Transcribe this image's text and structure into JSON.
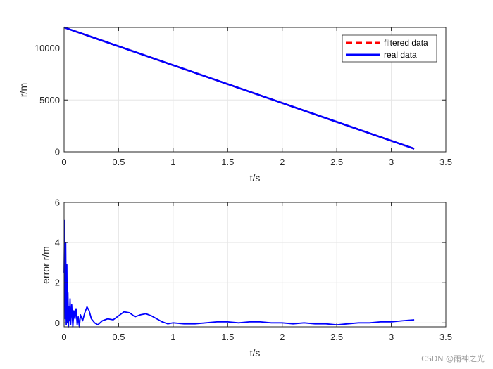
{
  "chart_data": [
    {
      "type": "line",
      "xlabel": "t/s",
      "ylabel": "r/m",
      "xlim": [
        0,
        3.5
      ],
      "ylim": [
        0,
        12000
      ],
      "xticks": [
        "0",
        "0.5",
        "1",
        "1.5",
        "2",
        "2.5",
        "3",
        "3.5"
      ],
      "yticks": [
        "0",
        "5000",
        "10000"
      ],
      "grid": true,
      "legend_placement": "top-right",
      "series": [
        {
          "name": "filtered data",
          "color": "#ff0000",
          "style": "dashed",
          "x": [
            0,
            3.21
          ],
          "y": [
            12000,
            300
          ]
        },
        {
          "name": "real data",
          "color": "#0000ff",
          "style": "solid",
          "x": [
            0,
            3.21
          ],
          "y": [
            12000,
            300
          ]
        }
      ]
    },
    {
      "type": "line",
      "xlabel": "t/s",
      "ylabel": "error r/m",
      "xlim": [
        0,
        3.5
      ],
      "ylim": [
        -0.2,
        6
      ],
      "xticks": [
        "0",
        "0.5",
        "1",
        "1.5",
        "2",
        "2.5",
        "3",
        "3.5"
      ],
      "yticks": [
        "0",
        "2",
        "4",
        "6"
      ],
      "grid": true,
      "series": [
        {
          "color": "#0000ff",
          "style": "solid",
          "x": [
            0,
            0.005,
            0.01,
            0.015,
            0.02,
            0.025,
            0.03,
            0.035,
            0.04,
            0.045,
            0.05,
            0.055,
            0.06,
            0.07,
            0.08,
            0.09,
            0.1,
            0.11,
            0.12,
            0.13,
            0.14,
            0.15,
            0.17,
            0.19,
            0.21,
            0.23,
            0.25,
            0.28,
            0.31,
            0.35,
            0.4,
            0.45,
            0.5,
            0.55,
            0.6,
            0.65,
            0.7,
            0.75,
            0.8,
            0.85,
            0.9,
            0.95,
            1.0,
            1.1,
            1.2,
            1.3,
            1.4,
            1.5,
            1.6,
            1.7,
            1.8,
            1.9,
            2.0,
            2.1,
            2.2,
            2.3,
            2.4,
            2.5,
            2.6,
            2.7,
            2.8,
            2.9,
            3.0,
            3.1,
            3.21
          ],
          "y": [
            2.5,
            5.1,
            0.2,
            4.0,
            -0.1,
            2.9,
            0.0,
            1.5,
            -0.2,
            0.8,
            0.1,
            1.2,
            -0.1,
            0.9,
            -0.2,
            0.6,
            0.2,
            0.7,
            -0.1,
            0.3,
            -0.2,
            0.4,
            0.1,
            0.5,
            0.8,
            0.6,
            0.2,
            0.0,
            -0.1,
            0.1,
            0.2,
            0.15,
            0.35,
            0.55,
            0.5,
            0.3,
            0.4,
            0.45,
            0.35,
            0.2,
            0.05,
            -0.05,
            0.0,
            -0.05,
            -0.05,
            0.0,
            0.05,
            0.05,
            0.0,
            0.05,
            0.05,
            0.0,
            0.0,
            -0.05,
            0.0,
            -0.05,
            -0.05,
            -0.1,
            -0.05,
            0.0,
            0.0,
            0.05,
            0.05,
            0.1,
            0.15
          ]
        }
      ]
    }
  ],
  "watermark": "CSDN @雨神之光"
}
